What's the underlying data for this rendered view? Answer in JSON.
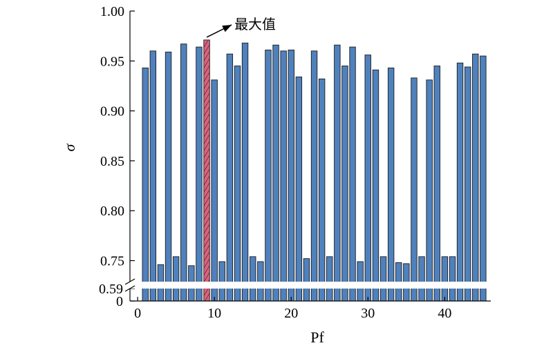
{
  "chart_data": {
    "type": "bar",
    "title": "",
    "xlabel": "Pf",
    "ylabel": "σ",
    "xlim": [
      -1,
      46
    ],
    "ylim_upper": [
      0.74,
      1.0
    ],
    "ylim_lower": [
      0,
      0.59
    ],
    "axis_break": true,
    "x_ticks": [
      "0",
      "10",
      "20",
      "30",
      "40"
    ],
    "x_tick_values": [
      0,
      10,
      20,
      30,
      40
    ],
    "y_ticks": [
      "0.75",
      "0.80",
      "0.85",
      "0.90",
      "0.95",
      "1.00"
    ],
    "y_tick_values": [
      0.75,
      0.8,
      0.85,
      0.9,
      0.95,
      1.0
    ],
    "y_lower_ticks": [
      "0.59",
      "0"
    ],
    "y_lower_tick_values": [
      0.59,
      0
    ],
    "bar_color": "#4f81bd",
    "highlight_color": "#e0607e",
    "highlight_index": 9,
    "annotation": "最大值",
    "x": [
      1,
      2,
      3,
      4,
      5,
      6,
      7,
      8,
      9,
      10,
      11,
      12,
      13,
      14,
      15,
      16,
      17,
      18,
      19,
      20,
      21,
      22,
      23,
      24,
      25,
      26,
      27,
      28,
      29,
      30,
      31,
      32,
      33,
      34,
      35,
      36,
      37,
      38,
      39,
      40,
      41,
      42,
      43,
      44,
      45
    ],
    "values": [
      0.943,
      0.96,
      0.746,
      0.959,
      0.754,
      0.967,
      0.745,
      0.964,
      0.971,
      0.931,
      0.749,
      0.957,
      0.945,
      0.968,
      0.754,
      0.749,
      0.961,
      0.966,
      0.96,
      0.961,
      0.934,
      0.752,
      0.96,
      0.932,
      0.754,
      0.966,
      0.945,
      0.964,
      0.749,
      0.956,
      0.941,
      0.754,
      0.943,
      0.748,
      0.747,
      0.933,
      0.754,
      0.931,
      0.945,
      0.754,
      0.754,
      0.948,
      0.944,
      0.957,
      0.955
    ]
  }
}
